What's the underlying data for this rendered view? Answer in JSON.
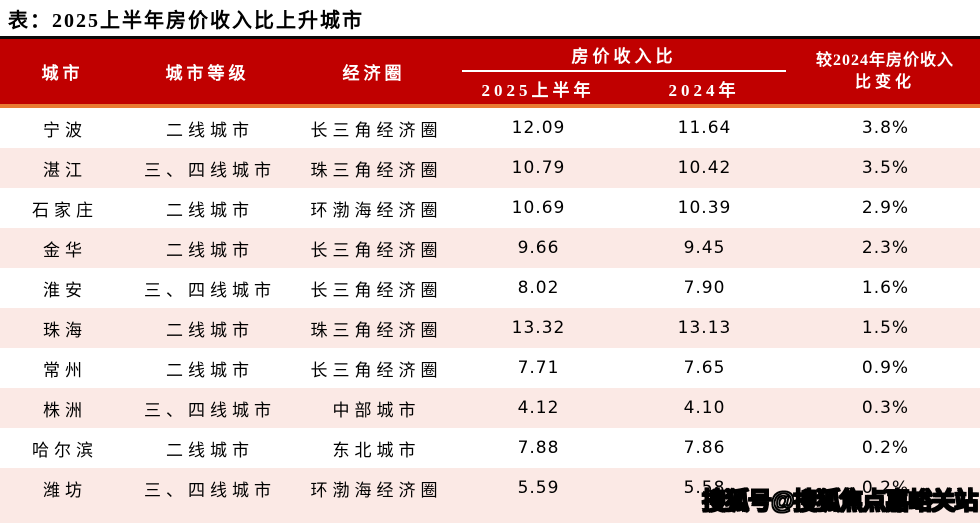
{
  "title": "表：2025上半年房价收入比上升城市",
  "colors": {
    "header_red": "#C00000",
    "accent_orange": "#E97A32",
    "row_pink": "#FBE9E5",
    "header_text": "#ffffff",
    "body_text": "#000000"
  },
  "table": {
    "col_city": "城市",
    "col_tier": "城市等级",
    "col_circle": "经济圈",
    "group_ratio": "房价收入比",
    "col_2025h1": "2025上半年",
    "col_2024": "2024年",
    "col_change_line1": "较2024年房价收入",
    "col_change_line2": "比变化",
    "rows": [
      {
        "city": "宁波",
        "tier": "二线城市",
        "circle": "长三角经济圈",
        "v2025": "12.09",
        "v2024": "11.64",
        "change": "3.8%"
      },
      {
        "city": "湛江",
        "tier": "三、四线城市",
        "circle": "珠三角经济圈",
        "v2025": "10.79",
        "v2024": "10.42",
        "change": "3.5%"
      },
      {
        "city": "石家庄",
        "tier": "二线城市",
        "circle": "环渤海经济圈",
        "v2025": "10.69",
        "v2024": "10.39",
        "change": "2.9%"
      },
      {
        "city": "金华",
        "tier": "二线城市",
        "circle": "长三角经济圈",
        "v2025": "9.66",
        "v2024": "9.45",
        "change": "2.3%"
      },
      {
        "city": "淮安",
        "tier": "三、四线城市",
        "circle": "长三角经济圈",
        "v2025": "8.02",
        "v2024": "7.90",
        "change": "1.6%"
      },
      {
        "city": "珠海",
        "tier": "二线城市",
        "circle": "珠三角经济圈",
        "v2025": "13.32",
        "v2024": "13.13",
        "change": "1.5%"
      },
      {
        "city": "常州",
        "tier": "二线城市",
        "circle": "长三角经济圈",
        "v2025": "7.71",
        "v2024": "7.65",
        "change": "0.9%"
      },
      {
        "city": "株洲",
        "tier": "三、四线城市",
        "circle": "中部城市",
        "v2025": "4.12",
        "v2024": "4.10",
        "change": "0.3%"
      },
      {
        "city": "哈尔滨",
        "tier": "二线城市",
        "circle": "东北城市",
        "v2025": "7.88",
        "v2024": "7.86",
        "change": "0.2%"
      },
      {
        "city": "潍坊",
        "tier": "三、四线城市",
        "circle": "环渤海经济圈",
        "v2025": "5.59",
        "v2024": "5.58",
        "change": "0.2%"
      }
    ]
  },
  "watermark": "搜狐号@搜狐焦点嘉峪关站",
  "chart_data": {
    "type": "table",
    "title": "表：2025上半年房价收入比上升城市",
    "columns": [
      "城市",
      "城市等级",
      "经济圈",
      "房价收入比 2025上半年",
      "房价收入比 2024年",
      "较2024年房价收入比变化"
    ],
    "rows": [
      [
        "宁波",
        "二线城市",
        "长三角经济圈",
        12.09,
        11.64,
        "3.8%"
      ],
      [
        "湛江",
        "三、四线城市",
        "珠三角经济圈",
        10.79,
        10.42,
        "3.5%"
      ],
      [
        "石家庄",
        "二线城市",
        "环渤海经济圈",
        10.69,
        10.39,
        "2.9%"
      ],
      [
        "金华",
        "二线城市",
        "长三角经济圈",
        9.66,
        9.45,
        "2.3%"
      ],
      [
        "淮安",
        "三、四线城市",
        "长三角经济圈",
        8.02,
        7.9,
        "1.6%"
      ],
      [
        "珠海",
        "二线城市",
        "珠三角经济圈",
        13.32,
        13.13,
        "1.5%"
      ],
      [
        "常州",
        "二线城市",
        "长三角经济圈",
        7.71,
        7.65,
        "0.9%"
      ],
      [
        "株洲",
        "三、四线城市",
        "中部城市",
        4.12,
        4.1,
        "0.3%"
      ],
      [
        "哈尔滨",
        "二线城市",
        "东北城市",
        7.88,
        7.86,
        "0.2%"
      ],
      [
        "潍坊",
        "三、四线城市",
        "环渤海经济圈",
        5.59,
        5.58,
        "0.2%"
      ]
    ]
  }
}
